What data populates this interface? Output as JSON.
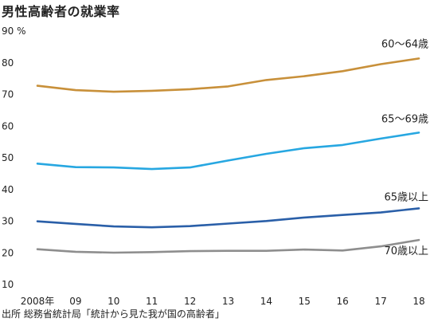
{
  "title": "男性高齢者の就業率",
  "source": "出所 総務省統計局「統計から見た我が国の高齢者」",
  "chart_data": {
    "type": "line",
    "title": "男性高齢者の就業率",
    "unit": "%",
    "x": [
      "2008年",
      "09",
      "10",
      "11",
      "12",
      "13",
      "14",
      "15",
      "16",
      "17",
      "18"
    ],
    "ylim": [
      10,
      90
    ],
    "yticks": [
      10,
      20,
      30,
      40,
      50,
      60,
      70,
      80,
      90
    ],
    "grid": false,
    "series": [
      {
        "name": "60〜64歳",
        "color": "#c8903a",
        "values": [
          72.5,
          71.1,
          70.6,
          70.9,
          71.4,
          72.3,
          74.3,
          75.5,
          77.1,
          79.3,
          81.1
        ]
      },
      {
        "name": "65〜69歳",
        "color": "#27a7e1",
        "values": [
          47.9,
          46.8,
          46.7,
          46.2,
          46.7,
          48.9,
          51.0,
          52.8,
          53.8,
          55.8,
          57.7
        ]
      },
      {
        "name": "65歳以上",
        "color": "#2a5fa8",
        "values": [
          29.7,
          28.9,
          28.1,
          27.8,
          28.2,
          29.0,
          29.8,
          30.9,
          31.7,
          32.5,
          33.8
        ]
      },
      {
        "name": "70歳以上",
        "color": "#8e8e8e",
        "values": [
          20.9,
          20.1,
          19.8,
          20.0,
          20.3,
          20.4,
          20.4,
          20.8,
          20.5,
          21.8,
          23.8
        ]
      }
    ]
  }
}
